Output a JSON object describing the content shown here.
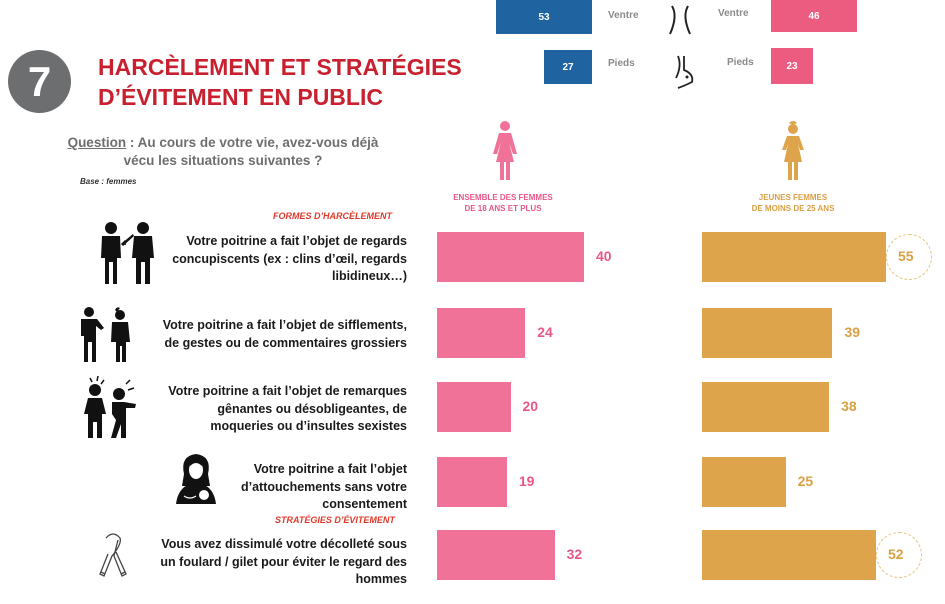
{
  "top_partial": {
    "rows": [
      {
        "label_left": "Ventre",
        "value_left": "53",
        "label_right": "Ventre",
        "value_right": "46",
        "icon": "waist-icon"
      },
      {
        "label_left": "Pieds",
        "value_left": "27",
        "label_right": "Pieds",
        "value_right": "23",
        "icon": "foot-icon"
      }
    ],
    "colors": {
      "left": "#1f64a0",
      "right": "#ec5b80"
    }
  },
  "header": {
    "badge_number": "7",
    "title_line1": "HARCÈLEMENT ET STRATÉGIES",
    "title_line2": "D’ÉVITEMENT EN PUBLIC",
    "question_label": "Question",
    "question_text_1": " : Au cours de votre vie, avez-vous déjà",
    "question_text_2": "vécu les situations suivantes ?",
    "base": "Base : femmes"
  },
  "columns": [
    {
      "line1": "ENSEMBLE DES FEMMES",
      "line2": "DE 18 ANS ET PLUS",
      "color": "#f07299",
      "text_color": "#e8578a",
      "icon": "woman-icon"
    },
    {
      "line1": "JEUNES FEMMES",
      "line2": "DE MOINS DE 25 ANS",
      "color": "#dea44b",
      "text_color": "#d9a044",
      "icon": "girl-icon"
    }
  ],
  "sections": {
    "harassment": "FORMES D’HARCÈLEMENT",
    "avoidance": "STRATÉGIES D’ÉVITEMENT"
  },
  "chart_data": {
    "type": "bar",
    "orientation": "horizontal",
    "title": "HARCÈLEMENT ET STRATÉGIES D’ÉVITEMENT EN PUBLIC",
    "unit": "%",
    "categories": [
      "Votre poitrine a fait l’objet de regards concupiscents (ex : clins d’œil, regards libidineux…)",
      "Votre poitrine a fait l’objet de sifflements, de gestes ou de commentaires grossiers",
      "Votre poitrine a fait l’objet de remarques gênantes ou désobligeantes, de moqueries ou d’insultes sexistes",
      "Votre poitrine a fait l’objet d’attouchements sans votre consentement",
      "Vous avez dissimulé votre décolleté sous un foulard / gilet pour éviter le regard des hommes"
    ],
    "category_lines": [
      [
        "Votre poitrine a fait l’objet de regards",
        "concupiscents (ex : clins d’œil, regards",
        "libidineux…)"
      ],
      [
        "Votre poitrine a fait l’objet de sifflements,",
        "de gestes ou de commentaires grossiers"
      ],
      [
        "Votre poitrine a fait l’objet de remarques",
        "gênantes ou désobligeantes, de",
        "moqueries ou d’insultes sexistes"
      ],
      [
        "Votre poitrine a fait l’objet",
        "d’attouchements sans votre",
        "consentement"
      ],
      [
        "Vous avez dissimulé votre décolleté sous",
        "un foulard / gilet pour éviter le regard des",
        "hommes"
      ]
    ],
    "category_icons": [
      "staring-men-icon",
      "catcalling-icon",
      "shouting-men-icon",
      "groping-icon",
      "scarf-icon"
    ],
    "series": [
      {
        "name": "Ensemble des femmes de 18 ans et plus",
        "values": [
          40,
          24,
          20,
          19,
          32
        ]
      },
      {
        "name": "Jeunes femmes de moins de 25 ans",
        "values": [
          55,
          39,
          38,
          25,
          52
        ],
        "highlighted": [
          true,
          false,
          false,
          false,
          true
        ]
      }
    ],
    "xlim": [
      0,
      55
    ],
    "grid": false,
    "legend": "top"
  }
}
